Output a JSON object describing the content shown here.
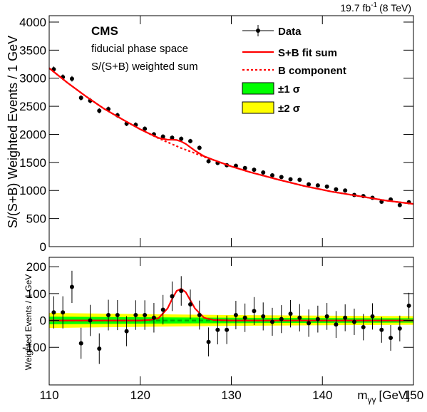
{
  "chart_data": [
    {
      "type": "errorbar",
      "lumi": "19.7 fb",
      "lumi_sup": "-1",
      "lumi_energy": "(8 TeV)",
      "experiment": "CMS",
      "annotations": [
        "fiducial phase space",
        "S/(S+B) weighted sum"
      ],
      "ylabel": "S/(S+B) Weighted Events / 1 GeV",
      "xlim": [
        110,
        150
      ],
      "ylim": [
        0,
        4114
      ],
      "yticks": [
        0,
        500,
        1000,
        1500,
        2000,
        2500,
        3000,
        3500,
        4000
      ],
      "series": [
        {
          "name": "Data",
          "color": "#000000",
          "kind": "points",
          "x": [
            110.5,
            111.5,
            112.5,
            113.5,
            114.5,
            115.5,
            116.5,
            117.5,
            118.5,
            119.5,
            120.5,
            121.5,
            122.5,
            123.5,
            124.5,
            125.5,
            126.5,
            127.5,
            128.5,
            129.5,
            130.5,
            131.5,
            132.5,
            133.5,
            134.5,
            135.5,
            136.5,
            137.5,
            138.5,
            139.5,
            140.5,
            141.5,
            142.5,
            143.5,
            144.5,
            145.5,
            146.5,
            147.5,
            148.5,
            149.5
          ],
          "values": [
            3160,
            3020,
            2990,
            2650,
            2600,
            2420,
            2450,
            2340,
            2190,
            2170,
            2100,
            2000,
            1960,
            1940,
            1920,
            1880,
            1760,
            1520,
            1490,
            1450,
            1440,
            1400,
            1370,
            1320,
            1270,
            1240,
            1200,
            1190,
            1110,
            1090,
            1070,
            1020,
            1000,
            920,
            900,
            870,
            800,
            840,
            740,
            790
          ],
          "errors": [
            50,
            50,
            50,
            48,
            48,
            46,
            46,
            45,
            44,
            44,
            43,
            42,
            42,
            42,
            42,
            41,
            40,
            38,
            38,
            37,
            37,
            37,
            36,
            36,
            35,
            35,
            34,
            34,
            33,
            33,
            33,
            32,
            32,
            31,
            30,
            30,
            29,
            29,
            28,
            28
          ]
        },
        {
          "name": "S+B fit sum",
          "color": "#ff0000",
          "kind": "solid",
          "x": [
            110,
            112,
            114,
            116,
            118,
            120,
            121,
            122,
            123,
            123.5,
            124,
            124.5,
            125,
            125.5,
            126,
            127,
            128,
            130,
            132,
            135,
            138,
            141,
            144,
            147,
            150
          ],
          "values": [
            3180,
            2920,
            2680,
            2460,
            2270,
            2090,
            2012,
            1938,
            1905,
            1905,
            1900,
            1873,
            1830,
            1770,
            1710,
            1610,
            1547,
            1430,
            1330,
            1200,
            1080,
            980,
            900,
            820,
            760
          ]
        },
        {
          "name": "B component",
          "color": "#ff0000",
          "kind": "dotted",
          "x": [
            110,
            112,
            114,
            116,
            118,
            120,
            121,
            122,
            123,
            123.5,
            124,
            124.5,
            125,
            125.5,
            126,
            127,
            128,
            130,
            132,
            135,
            138,
            141,
            144,
            147,
            150
          ],
          "values": [
            3180,
            2920,
            2680,
            2460,
            2270,
            2090,
            2010,
            1930,
            1860,
            1825,
            1790,
            1755,
            1725,
            1695,
            1665,
            1600,
            1545,
            1430,
            1330,
            1200,
            1080,
            980,
            900,
            820,
            760
          ]
        }
      ]
    },
    {
      "type": "errorbar",
      "ylabel": "Weighted Events / 1 GeV",
      "xlabel": "m",
      "xlabel_sub": "γγ",
      "xlabel_unit": "[GeV]",
      "xlim": [
        110,
        150
      ],
      "ylim": [
        -240,
        235
      ],
      "xticks": [
        110,
        120,
        130,
        140,
        150
      ],
      "yticks": [
        -100,
        0,
        100,
        200
      ],
      "series": [
        {
          "name": "±2 σ",
          "color": "#ffff00",
          "kind": "band",
          "x": [
            110,
            130,
            150
          ],
          "values": [
            28,
            20,
            16
          ]
        },
        {
          "name": "±1 σ",
          "color": "#00ff00",
          "kind": "band",
          "x": [
            110,
            130,
            150
          ],
          "values": [
            14,
            10,
            8
          ]
        },
        {
          "color": "#00aa00",
          "kind": "dashed",
          "x": [
            110,
            150
          ],
          "values": [
            0,
            0
          ]
        },
        {
          "color": "#ff0000",
          "kind": "solid",
          "x": [
            110,
            120,
            121,
            122,
            123,
            123.5,
            124,
            124.5,
            125,
            125.5,
            126,
            127,
            128,
            130,
            150
          ],
          "values": [
            0,
            0,
            2,
            8,
            45,
            80,
            110,
            118,
            105,
            75,
            45,
            10,
            2,
            0,
            0
          ]
        },
        {
          "color": "#000000",
          "kind": "points",
          "x": [
            110.5,
            111.5,
            112.5,
            113.5,
            114.5,
            115.5,
            116.5,
            117.5,
            118.5,
            119.5,
            120.5,
            121.5,
            122.5,
            123.5,
            124.5,
            125.5,
            126.5,
            127.5,
            128.5,
            129.5,
            130.5,
            131.5,
            132.5,
            133.5,
            134.5,
            135.5,
            136.5,
            137.5,
            138.5,
            139.5,
            140.5,
            141.5,
            142.5,
            143.5,
            144.5,
            145.5,
            146.5,
            147.5,
            148.5,
            149.5
          ],
          "values": [
            30,
            30,
            125,
            -85,
            0,
            -105,
            20,
            20,
            -40,
            20,
            20,
            10,
            40,
            90,
            110,
            60,
            20,
            -80,
            -35,
            -35,
            20,
            10,
            35,
            15,
            -5,
            5,
            25,
            10,
            -10,
            5,
            15,
            -15,
            10,
            -5,
            -25,
            15,
            -35,
            -65,
            -30,
            55
          ],
          "errors": [
            60,
            60,
            60,
            58,
            58,
            57,
            57,
            56,
            56,
            55,
            55,
            55,
            55,
            55,
            55,
            55,
            54,
            54,
            54,
            53,
            53,
            53,
            52,
            52,
            52,
            52,
            51,
            51,
            51,
            50,
            50,
            50,
            50,
            49,
            49,
            49,
            48,
            48,
            48,
            48
          ]
        }
      ]
    }
  ]
}
